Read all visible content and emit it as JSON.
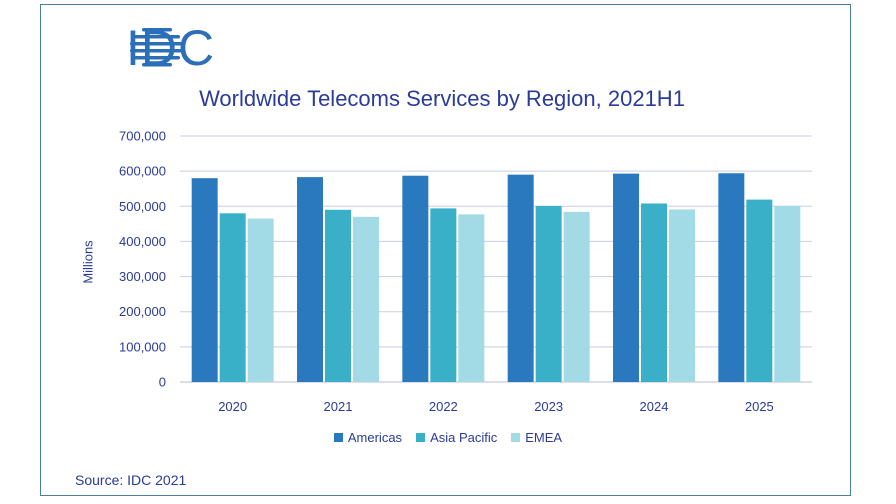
{
  "logo": {
    "text": "IDC"
  },
  "source": "Source: IDC 2021",
  "colors": {
    "Americas": "#2a78bd",
    "Asia Pacific": "#39afc8",
    "EMEA": "#a2dbe6",
    "grid": "#c9cde3",
    "text": "#2a3b99"
  },
  "chart_data": {
    "type": "bar",
    "title": "Worldwide Telecoms Services by Region, 2021H1",
    "xlabel": "",
    "ylabel": "Millions",
    "ylim": [
      0,
      700000
    ],
    "yticks": [
      "0",
      "100,000",
      "200,000",
      "300,000",
      "400,000",
      "500,000",
      "600,000",
      "700,000"
    ],
    "grid": true,
    "legend_position": "bottom",
    "categories": [
      "2020",
      "2021",
      "2022",
      "2023",
      "2024",
      "2025"
    ],
    "series": [
      {
        "name": "Americas",
        "values": [
          580000,
          583000,
          587000,
          590000,
          593000,
          594000
        ]
      },
      {
        "name": "Asia Pacific",
        "values": [
          480000,
          490000,
          494000,
          501000,
          508000,
          519000
        ]
      },
      {
        "name": "EMEA",
        "values": [
          465000,
          470000,
          477000,
          484000,
          491000,
          501000
        ]
      }
    ]
  }
}
